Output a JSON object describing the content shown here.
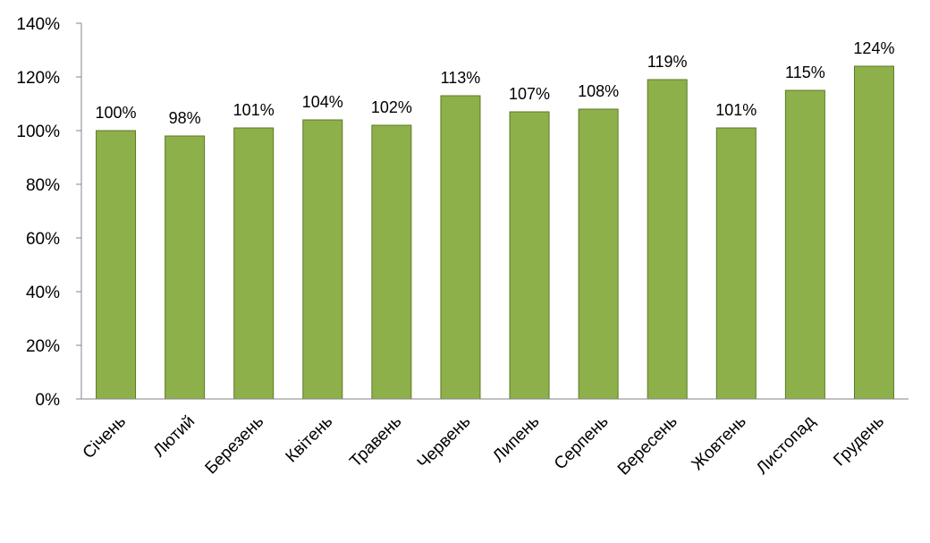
{
  "chart_data": {
    "type": "bar",
    "categories": [
      "Січень",
      "Лютий",
      "Березень",
      "Квітень",
      "Травень",
      "Червень",
      "Липень",
      "Серпень",
      "Вересень",
      "Жовтень",
      "Листопад",
      "Грудень"
    ],
    "values": [
      100,
      98,
      101,
      104,
      102,
      113,
      107,
      108,
      119,
      101,
      115,
      124
    ],
    "data_labels": [
      "100%",
      "98%",
      "101%",
      "104%",
      "102%",
      "113%",
      "107%",
      "108%",
      "119%",
      "101%",
      "115%",
      "124%"
    ],
    "y_ticks": [
      0,
      20,
      40,
      60,
      80,
      100,
      120,
      140
    ],
    "y_tick_labels": [
      "0%",
      "20%",
      "40%",
      "60%",
      "80%",
      "100%",
      "120%",
      "140%"
    ],
    "ylim": [
      0,
      140
    ],
    "unit": "%",
    "title": "",
    "xlabel": "",
    "ylabel": "",
    "grid": false,
    "legend": "none",
    "colors": {
      "bar_fill": "#8db04a",
      "bar_stroke": "#5b7a27",
      "axis": "#868686"
    }
  }
}
